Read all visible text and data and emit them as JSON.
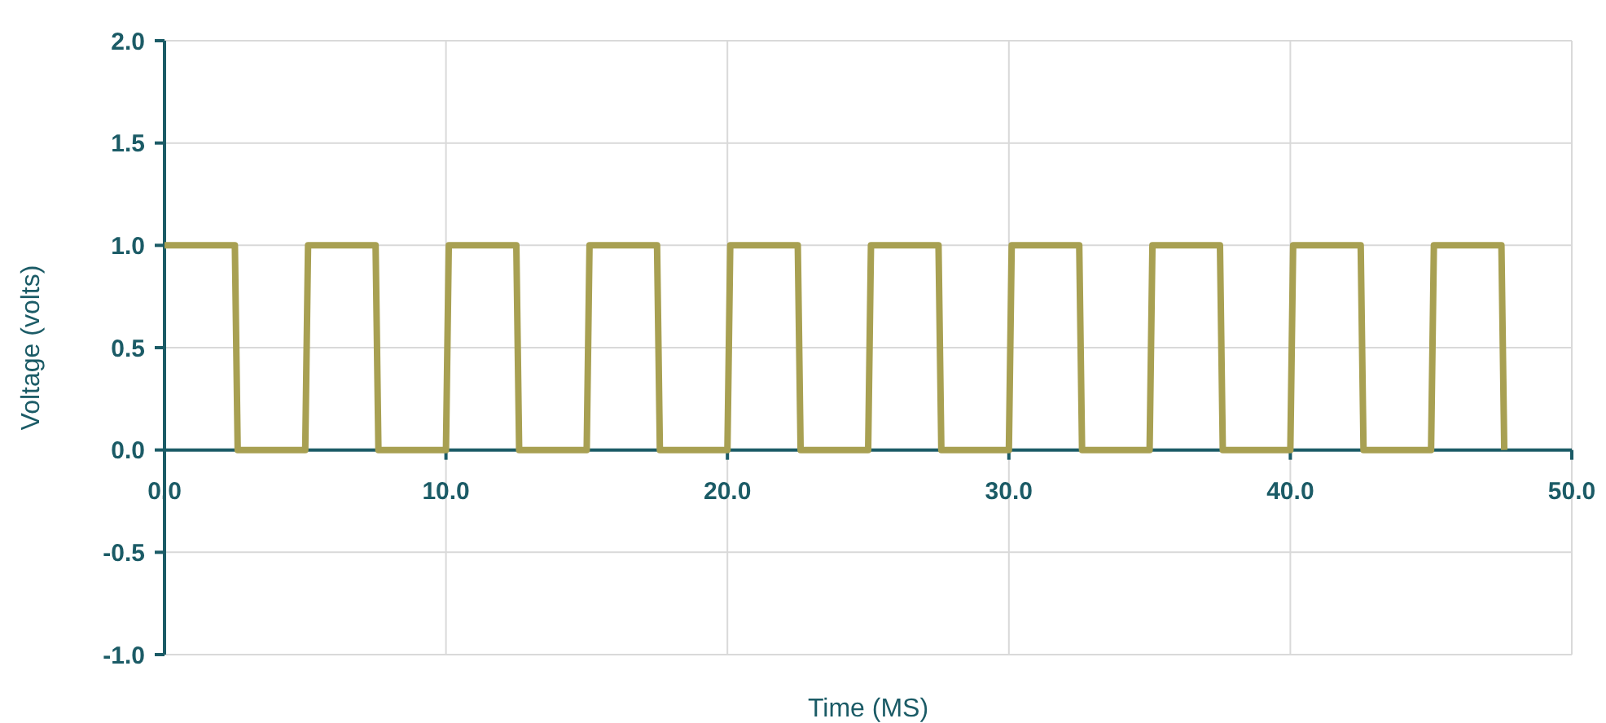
{
  "chart_data": {
    "type": "line",
    "xlabel": "Time (MS)",
    "ylabel": "Voltage (volts)",
    "x": [
      0,
      2.5,
      2.6,
      5,
      5.1,
      7.5,
      7.6,
      10,
      10.1,
      12.5,
      12.6,
      15,
      15.1,
      17.5,
      17.6,
      20,
      20.1,
      22.5,
      22.6,
      25,
      25.1,
      27.5,
      27.6,
      30,
      30.1,
      32.5,
      32.6,
      35,
      35.1,
      37.5,
      37.6,
      40,
      40.1,
      42.5,
      42.6,
      45,
      45.1,
      47.5,
      47.6
    ],
    "series": [
      {
        "color": "#a8a052",
        "values": [
          1,
          1,
          0,
          0,
          1,
          1,
          0,
          0,
          1,
          1,
          0,
          0,
          1,
          1,
          0,
          0,
          1,
          1,
          0,
          0,
          1,
          1,
          0,
          0,
          1,
          1,
          0,
          0,
          1,
          1,
          0,
          0,
          1,
          1,
          0,
          0,
          1,
          1,
          0
        ]
      }
    ],
    "xlim": [
      0,
      50
    ],
    "xticks": [
      {
        "value": 0,
        "label": "0.0"
      },
      {
        "value": 10,
        "label": "10.0"
      },
      {
        "value": 20,
        "label": "20.0"
      },
      {
        "value": 30,
        "label": "30.0"
      },
      {
        "value": 40,
        "label": "40.0"
      },
      {
        "value": 50,
        "label": "50.0"
      }
    ],
    "ylim": [
      -1,
      2
    ],
    "yticks": [
      {
        "value": -1,
        "label": "-1.0"
      },
      {
        "value": -0.5,
        "label": "-0.5"
      },
      {
        "value": 0,
        "label": "0.0"
      },
      {
        "value": 0.5,
        "label": "0.5"
      },
      {
        "value": 1,
        "label": "1.0"
      },
      {
        "value": 1.5,
        "label": "1.5"
      },
      {
        "value": 2,
        "label": "2.0"
      }
    ],
    "grid": true,
    "marker": "none",
    "line_style": "solid"
  }
}
